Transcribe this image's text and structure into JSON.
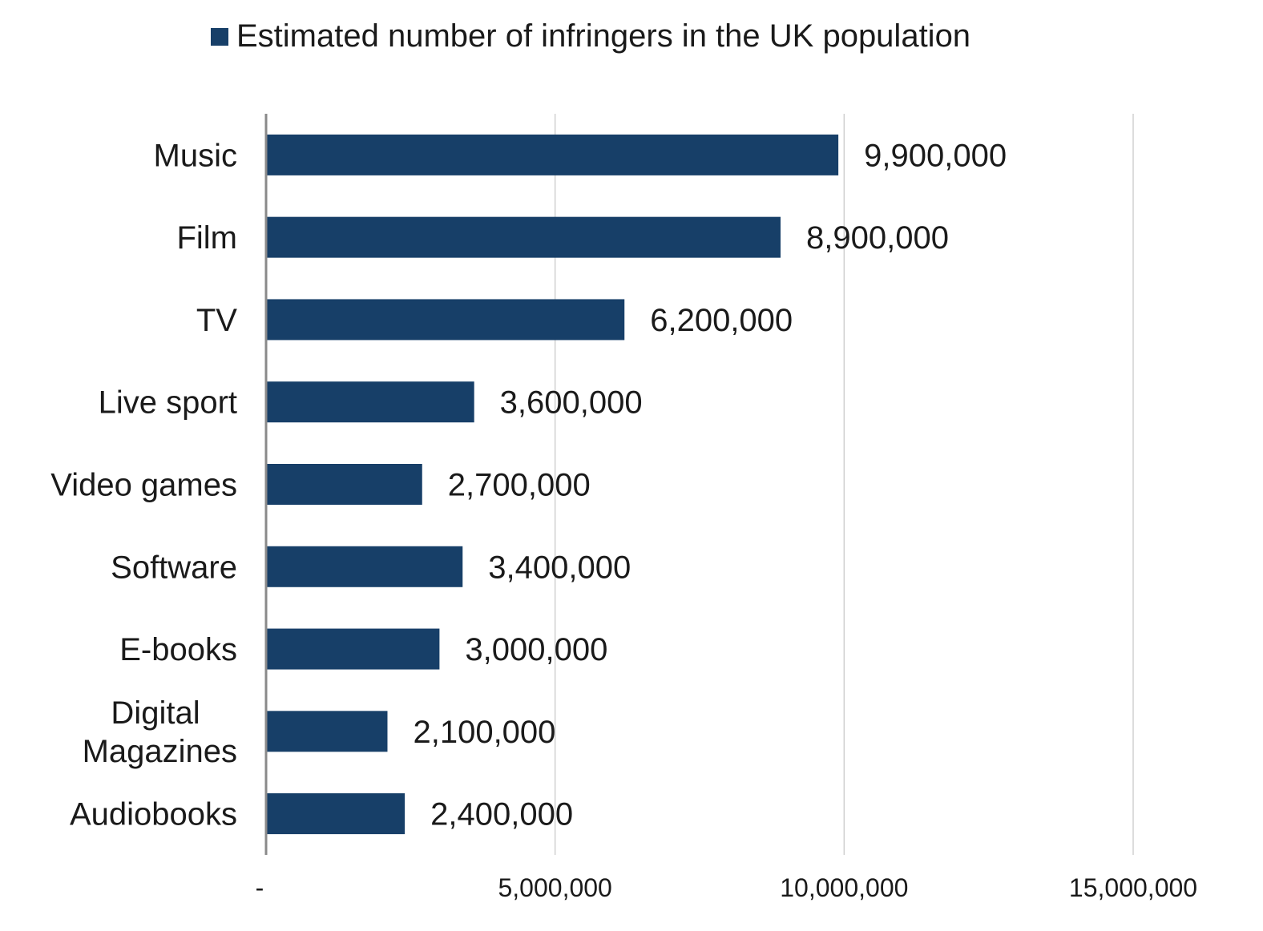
{
  "chart_data": {
    "type": "bar",
    "orientation": "horizontal",
    "categories": [
      "Music",
      "Film",
      "TV",
      "Live sport",
      "Video games",
      "Software",
      "E-books",
      "Digital Magazines",
      "Audiobooks"
    ],
    "category_lines": [
      [
        "Music"
      ],
      [
        "Film"
      ],
      [
        "TV"
      ],
      [
        "Live sport"
      ],
      [
        "Video games"
      ],
      [
        "Software"
      ],
      [
        "E-books"
      ],
      [
        "Digital",
        "Magazines"
      ],
      [
        "Audiobooks"
      ]
    ],
    "series": [
      {
        "name": "Estimated number of infringers in the UK population",
        "values": [
          9900000,
          8900000,
          6200000,
          3600000,
          2700000,
          3400000,
          3000000,
          2100000,
          2400000
        ],
        "value_labels": [
          "9,900,000",
          "8,900,000",
          "6,200,000",
          "3,600,000",
          "2,700,000",
          "3,400,000",
          "3,000,000",
          "2,100,000",
          "2,400,000"
        ]
      }
    ],
    "x_ticks": [
      0,
      5000000,
      10000000,
      15000000
    ],
    "x_tick_labels": [
      "-",
      "5,000,000",
      "10,000,000",
      "15,000,000"
    ],
    "xlim": [
      0,
      15000000
    ],
    "grid": true,
    "legend_position": "top",
    "bar_color": "#173f68",
    "title": "",
    "xlabel": "",
    "ylabel": ""
  }
}
